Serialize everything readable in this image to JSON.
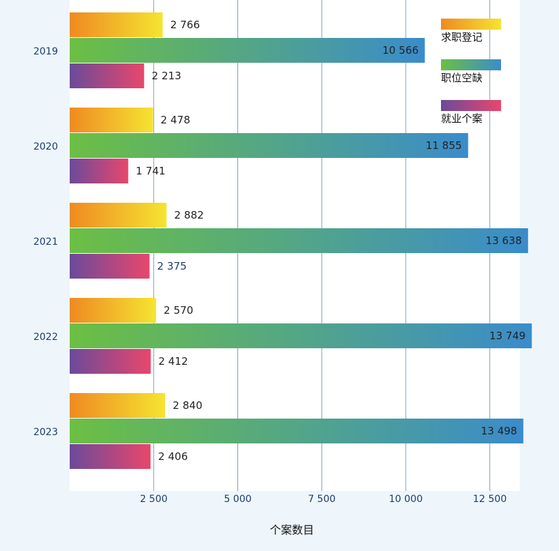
{
  "chart_data": {
    "type": "bar",
    "orientation": "horizontal",
    "categories": [
      "2019",
      "2020",
      "2021",
      "2022",
      "2023"
    ],
    "series": [
      {
        "name": "求职登记",
        "values": [
          2766,
          2478,
          2882,
          2570,
          2840
        ],
        "labels": [
          "2 766",
          "2 478",
          "2 882",
          "2 570",
          "2 840"
        ],
        "gradient": [
          "#ef8a22",
          "#f5e431"
        ]
      },
      {
        "name": "职位空缺",
        "values": [
          10566,
          11855,
          13638,
          13749,
          13498
        ],
        "labels": [
          "10 566",
          "11 855",
          "13 638",
          "13 749",
          "13 498"
        ],
        "gradient": [
          "#6cbf43",
          "#3a8ccb"
        ]
      },
      {
        "name": "就业个案",
        "values": [
          2213,
          1741,
          2375,
          2412,
          2406
        ],
        "labels": [
          "2 213",
          "1 741",
          "2 375",
          "2 412",
          "2 406"
        ],
        "gradient": [
          "#6b4a9a",
          "#e8476c"
        ]
      }
    ],
    "xlabel": "个案数目",
    "ylabel": "",
    "xlim": [
      0,
      14000
    ],
    "xticks": [
      2500,
      5000,
      7500,
      10000,
      12500
    ],
    "xtick_labels": [
      "2 500",
      "5 000",
      "7 500",
      "10  000",
      "12  500"
    ],
    "grid": "vertical",
    "legend_position": "top-right",
    "colors": {
      "page_background": "#eef6fb",
      "plot_background": "#ffffff",
      "grid": "#7f9fb8",
      "year_label": "#1d3b6e",
      "value_label": "#222222"
    }
  }
}
